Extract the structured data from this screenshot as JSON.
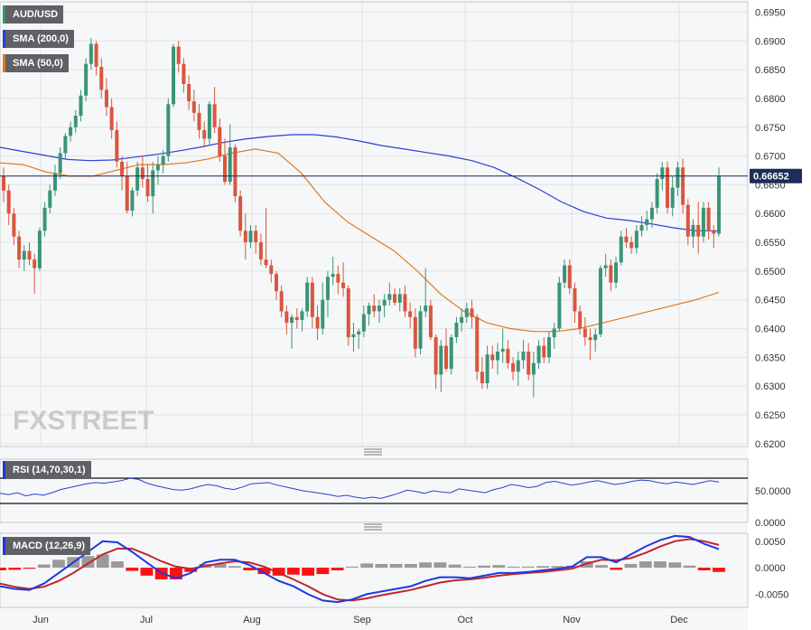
{
  "chart_data": [
    {
      "type": "candlestick",
      "title": "AUD/USD",
      "x_tick_labels": [
        "Jun",
        "Jul",
        "Aug",
        "Sep",
        "Oct",
        "Nov",
        "Dec"
      ],
      "y_tick_labels": [
        "0.6950",
        "0.6900",
        "0.6850",
        "0.6800",
        "0.6750",
        "0.6700",
        "0.6650",
        "0.6600",
        "0.6550",
        "0.6500",
        "0.6450",
        "0.6400",
        "0.6350",
        "0.6300",
        "0.6250",
        "0.6200"
      ],
      "ylim": [
        0.6195,
        0.6968
      ],
      "grid": true,
      "last_price_label": "0.66652",
      "last_price": 0.66652,
      "watermark": "FXSTREET",
      "sma_200": {
        "name": "SMA (200,0)",
        "color": "#2a3fd6",
        "values": [
          0.6715,
          0.6708,
          0.6701,
          0.6694,
          0.6692,
          0.6693,
          0.6698,
          0.6703,
          0.6709,
          0.6716,
          0.6724,
          0.673,
          0.6734,
          0.6737,
          0.6737,
          0.6733,
          0.6726,
          0.6718,
          0.6712,
          0.6706,
          0.67,
          0.6692,
          0.668,
          0.6662,
          0.6642,
          0.662,
          0.6603,
          0.6592,
          0.6588,
          0.6582,
          0.6575,
          0.657,
          0.657
        ]
      },
      "sma_50": {
        "name": "SMA (50,0)",
        "color": "#e07a1f",
        "values": [
          0.6688,
          0.6685,
          0.6672,
          0.6665,
          0.6665,
          0.6675,
          0.6685,
          0.6685,
          0.6688,
          0.6695,
          0.6705,
          0.6712,
          0.6705,
          0.667,
          0.662,
          0.6585,
          0.656,
          0.6535,
          0.65,
          0.646,
          0.643,
          0.641,
          0.64,
          0.6395,
          0.6395,
          0.64,
          0.641,
          0.642,
          0.643,
          0.644,
          0.645,
          0.6463
        ]
      },
      "candles": [
        [
          0.6665,
          0.668,
          0.662,
          0.664
        ],
        [
          0.664,
          0.665,
          0.658,
          0.66
        ],
        [
          0.66,
          0.661,
          0.6545,
          0.656
        ],
        [
          0.656,
          0.657,
          0.6505,
          0.652
        ],
        [
          0.652,
          0.6545,
          0.65,
          0.6535
        ],
        [
          0.6535,
          0.655,
          0.651,
          0.652
        ],
        [
          0.652,
          0.653,
          0.646,
          0.6505
        ],
        [
          0.6505,
          0.6575,
          0.65,
          0.657
        ],
        [
          0.657,
          0.662,
          0.656,
          0.661
        ],
        [
          0.661,
          0.665,
          0.66,
          0.664
        ],
        [
          0.664,
          0.6685,
          0.663,
          0.667
        ],
        [
          0.667,
          0.6715,
          0.666,
          0.6705
        ],
        [
          0.6705,
          0.674,
          0.6695,
          0.6735
        ],
        [
          0.6735,
          0.676,
          0.6725,
          0.675
        ],
        [
          0.675,
          0.678,
          0.674,
          0.677
        ],
        [
          0.677,
          0.6815,
          0.676,
          0.6805
        ],
        [
          0.6805,
          0.687,
          0.6795,
          0.686
        ],
        [
          0.686,
          0.6905,
          0.685,
          0.6895
        ],
        [
          0.6895,
          0.69,
          0.684,
          0.6855
        ],
        [
          0.6855,
          0.687,
          0.68,
          0.6815
        ],
        [
          0.6815,
          0.6835,
          0.677,
          0.6785
        ],
        [
          0.6785,
          0.68,
          0.673,
          0.6745
        ],
        [
          0.6745,
          0.676,
          0.668,
          0.669
        ],
        [
          0.669,
          0.67,
          0.664,
          0.6665
        ],
        [
          0.6665,
          0.669,
          0.66,
          0.6605
        ],
        [
          0.6605,
          0.6645,
          0.6595,
          0.664
        ],
        [
          0.664,
          0.669,
          0.663,
          0.668
        ],
        [
          0.668,
          0.67,
          0.6645,
          0.666
        ],
        [
          0.666,
          0.6685,
          0.662,
          0.663
        ],
        [
          0.663,
          0.669,
          0.66,
          0.6675
        ],
        [
          0.6675,
          0.67,
          0.665,
          0.6685
        ],
        [
          0.6685,
          0.671,
          0.667,
          0.67
        ],
        [
          0.67,
          0.68,
          0.669,
          0.679
        ],
        [
          0.679,
          0.6895,
          0.6785,
          0.689
        ],
        [
          0.689,
          0.69,
          0.6845,
          0.686
        ],
        [
          0.686,
          0.687,
          0.681,
          0.6825
        ],
        [
          0.6825,
          0.684,
          0.678,
          0.6795
        ],
        [
          0.6795,
          0.6815,
          0.676,
          0.6775
        ],
        [
          0.6775,
          0.679,
          0.673,
          0.6745
        ],
        [
          0.6745,
          0.676,
          0.6715,
          0.673
        ],
        [
          0.673,
          0.6795,
          0.672,
          0.679
        ],
        [
          0.679,
          0.682,
          0.674,
          0.675
        ],
        [
          0.675,
          0.6765,
          0.669,
          0.67
        ],
        [
          0.67,
          0.673,
          0.665,
          0.6655
        ],
        [
          0.6655,
          0.6755,
          0.665,
          0.6715
        ],
        [
          0.6715,
          0.672,
          0.662,
          0.663
        ],
        [
          0.663,
          0.664,
          0.656,
          0.657
        ],
        [
          0.657,
          0.66,
          0.652,
          0.655
        ],
        [
          0.655,
          0.658,
          0.654,
          0.657
        ],
        [
          0.657,
          0.658,
          0.653,
          0.655
        ],
        [
          0.655,
          0.6565,
          0.651,
          0.652
        ],
        [
          0.652,
          0.661,
          0.6505,
          0.651
        ],
        [
          0.651,
          0.652,
          0.648,
          0.6495
        ],
        [
          0.6495,
          0.65,
          0.645,
          0.6465
        ],
        [
          0.6465,
          0.6475,
          0.642,
          0.643
        ],
        [
          0.643,
          0.644,
          0.639,
          0.641
        ],
        [
          0.641,
          0.6425,
          0.6365,
          0.642
        ],
        [
          0.642,
          0.6435,
          0.64,
          0.6415
        ],
        [
          0.6415,
          0.6435,
          0.6395,
          0.643
        ],
        [
          0.643,
          0.649,
          0.642,
          0.648
        ],
        [
          0.648,
          0.649,
          0.64,
          0.642
        ],
        [
          0.642,
          0.644,
          0.638,
          0.64
        ],
        [
          0.64,
          0.648,
          0.639,
          0.645
        ],
        [
          0.645,
          0.65,
          0.642,
          0.649
        ],
        [
          0.649,
          0.6525,
          0.6475,
          0.6495
        ],
        [
          0.6495,
          0.651,
          0.646,
          0.648
        ],
        [
          0.648,
          0.6515,
          0.6455,
          0.647
        ],
        [
          0.647,
          0.6475,
          0.637,
          0.6385
        ],
        [
          0.6385,
          0.641,
          0.636,
          0.639
        ],
        [
          0.639,
          0.64,
          0.6365,
          0.6395
        ],
        [
          0.6395,
          0.644,
          0.6385,
          0.6425
        ],
        [
          0.6425,
          0.6445,
          0.6405,
          0.644
        ],
        [
          0.644,
          0.646,
          0.642,
          0.643
        ],
        [
          0.643,
          0.645,
          0.641,
          0.644
        ],
        [
          0.644,
          0.646,
          0.642,
          0.645
        ],
        [
          0.645,
          0.648,
          0.644,
          0.646
        ],
        [
          0.646,
          0.647,
          0.644,
          0.6445
        ],
        [
          0.6445,
          0.647,
          0.643,
          0.646
        ],
        [
          0.646,
          0.6475,
          0.642,
          0.643
        ],
        [
          0.643,
          0.6445,
          0.64,
          0.642
        ],
        [
          0.642,
          0.6435,
          0.635,
          0.6365
        ],
        [
          0.6365,
          0.644,
          0.6355,
          0.643
        ],
        [
          0.643,
          0.6505,
          0.642,
          0.644
        ],
        [
          0.644,
          0.645,
          0.638,
          0.6385
        ],
        [
          0.6385,
          0.639,
          0.6295,
          0.632
        ],
        [
          0.632,
          0.638,
          0.629,
          0.637
        ],
        [
          0.637,
          0.64,
          0.6325,
          0.633
        ],
        [
          0.633,
          0.639,
          0.632,
          0.6385
        ],
        [
          0.6385,
          0.642,
          0.6375,
          0.641
        ],
        [
          0.641,
          0.6435,
          0.6395,
          0.642
        ],
        [
          0.642,
          0.6445,
          0.641,
          0.6435
        ],
        [
          0.6435,
          0.645,
          0.64,
          0.642
        ],
        [
          0.642,
          0.6425,
          0.631,
          0.6325
        ],
        [
          0.6325,
          0.635,
          0.6295,
          0.6305
        ],
        [
          0.6305,
          0.637,
          0.6295,
          0.6355
        ],
        [
          0.6355,
          0.637,
          0.633,
          0.6345
        ],
        [
          0.6345,
          0.6375,
          0.632,
          0.636
        ],
        [
          0.636,
          0.64,
          0.634,
          0.6365
        ],
        [
          0.6365,
          0.638,
          0.633,
          0.634
        ],
        [
          0.634,
          0.635,
          0.631,
          0.6325
        ],
        [
          0.6325,
          0.636,
          0.63,
          0.6345
        ],
        [
          0.6345,
          0.638,
          0.633,
          0.636
        ],
        [
          0.636,
          0.6375,
          0.631,
          0.632
        ],
        [
          0.632,
          0.636,
          0.628,
          0.634
        ],
        [
          0.634,
          0.638,
          0.633,
          0.637
        ],
        [
          0.637,
          0.6385,
          0.634,
          0.635
        ],
        [
          0.635,
          0.6395,
          0.634,
          0.6385
        ],
        [
          0.6385,
          0.641,
          0.6365,
          0.64
        ],
        [
          0.64,
          0.649,
          0.6395,
          0.648
        ],
        [
          0.648,
          0.652,
          0.647,
          0.651
        ],
        [
          0.651,
          0.652,
          0.646,
          0.647
        ],
        [
          0.647,
          0.648,
          0.641,
          0.643
        ],
        [
          0.643,
          0.644,
          0.639,
          0.64
        ],
        [
          0.64,
          0.642,
          0.637,
          0.6385
        ],
        [
          0.6385,
          0.64,
          0.6345,
          0.638
        ],
        [
          0.638,
          0.64,
          0.636,
          0.639
        ],
        [
          0.639,
          0.651,
          0.6385,
          0.6505
        ],
        [
          0.6505,
          0.653,
          0.649,
          0.651
        ],
        [
          0.651,
          0.652,
          0.6465,
          0.648
        ],
        [
          0.648,
          0.6525,
          0.647,
          0.6515
        ],
        [
          0.6515,
          0.657,
          0.651,
          0.656
        ],
        [
          0.656,
          0.6575,
          0.654,
          0.655
        ],
        [
          0.655,
          0.656,
          0.653,
          0.654
        ],
        [
          0.654,
          0.658,
          0.653,
          0.657
        ],
        [
          0.657,
          0.6595,
          0.656,
          0.658
        ],
        [
          0.658,
          0.6605,
          0.657,
          0.659
        ],
        [
          0.659,
          0.662,
          0.6575,
          0.661
        ],
        [
          0.661,
          0.667,
          0.66,
          0.666
        ],
        [
          0.666,
          0.669,
          0.664,
          0.668
        ],
        [
          0.668,
          0.669,
          0.66,
          0.661
        ],
        [
          0.661,
          0.6665,
          0.6595,
          0.6645
        ],
        [
          0.6645,
          0.669,
          0.663,
          0.668
        ],
        [
          0.668,
          0.6695,
          0.66,
          0.6615
        ],
        [
          0.6615,
          0.6625,
          0.6545,
          0.656
        ],
        [
          0.656,
          0.659,
          0.654,
          0.658
        ],
        [
          0.658,
          0.662,
          0.653,
          0.656
        ],
        [
          0.656,
          0.662,
          0.655,
          0.661
        ],
        [
          0.661,
          0.662,
          0.6555,
          0.657
        ],
        [
          0.657,
          0.658,
          0.654,
          0.6565
        ],
        [
          0.6565,
          0.668,
          0.656,
          0.6665
        ]
      ]
    },
    {
      "type": "line",
      "title": "RSI (14,70,30,1)",
      "y_tick_labels": [
        "50.0000",
        "0.0000"
      ],
      "levels": [
        70,
        30
      ],
      "ylim": [
        0,
        100
      ],
      "values": [
        46,
        44,
        47,
        42,
        45,
        43,
        47,
        52,
        55,
        58,
        61,
        63,
        62,
        64,
        66,
        70,
        68,
        62,
        58,
        55,
        52,
        51,
        53,
        57,
        60,
        58,
        54,
        52,
        56,
        61,
        62,
        63,
        59,
        56,
        53,
        50,
        48,
        46,
        44,
        41,
        43,
        40,
        38,
        40,
        38,
        42,
        46,
        51,
        49,
        46,
        50,
        48,
        47,
        53,
        51,
        49,
        47,
        52,
        55,
        60,
        58,
        55,
        57,
        63,
        65,
        62,
        59,
        61,
        64,
        66,
        63,
        60,
        62,
        65,
        67,
        66,
        63,
        61,
        64,
        62,
        60,
        63,
        66,
        64
      ]
    },
    {
      "type": "bar+line",
      "title": "MACD (12,26,9)",
      "y_tick_labels": [
        "0.0050",
        "0.0000",
        "-0.0050"
      ],
      "ylim": [
        -0.0075,
        0.0065
      ],
      "macd": {
        "color": "#2038e0",
        "values": [
          -0.0035,
          -0.004,
          -0.0042,
          -0.003,
          -0.001,
          0.001,
          0.003,
          0.005,
          0.0048,
          0.003,
          0.001,
          -0.001,
          -0.002,
          -0.001,
          0.001,
          0.0015,
          0.0015,
          0.0005,
          -0.001,
          -0.0025,
          -0.0035,
          -0.005,
          -0.0062,
          -0.0065,
          -0.006,
          -0.005,
          -0.0045,
          -0.004,
          -0.0035,
          -0.0025,
          -0.0018,
          -0.0018,
          -0.002,
          -0.0015,
          -0.001,
          -0.001,
          -0.0008,
          -0.0005,
          -0.0002,
          0.0002,
          0.002,
          0.002,
          0.001,
          0.0025,
          0.004,
          0.0052,
          0.006,
          0.0058,
          0.0045,
          0.0035
        ]
      },
      "signal": {
        "color": "#c0262b",
        "values": [
          -0.003,
          -0.0036,
          -0.004,
          -0.0036,
          -0.0025,
          -0.001,
          0.0008,
          0.0025,
          0.0036,
          0.0036,
          0.0025,
          0.0012,
          0.0002,
          -0.0002,
          0.0003,
          0.0008,
          0.0012,
          0.001,
          0.0002,
          -0.001,
          -0.0022,
          -0.0035,
          -0.005,
          -0.006,
          -0.0062,
          -0.0058,
          -0.0052,
          -0.0047,
          -0.0042,
          -0.0035,
          -0.0028,
          -0.0024,
          -0.0022,
          -0.0019,
          -0.0015,
          -0.0012,
          -0.001,
          -0.0008,
          -0.0005,
          -0.0002,
          0.0008,
          0.0015,
          0.0014,
          0.0018,
          0.0028,
          0.004,
          0.005,
          0.0054,
          0.005,
          0.0043
        ]
      },
      "histogram_colors": {
        "positive": "#9a9a9a",
        "negative": "#ff1010"
      }
    }
  ]
}
